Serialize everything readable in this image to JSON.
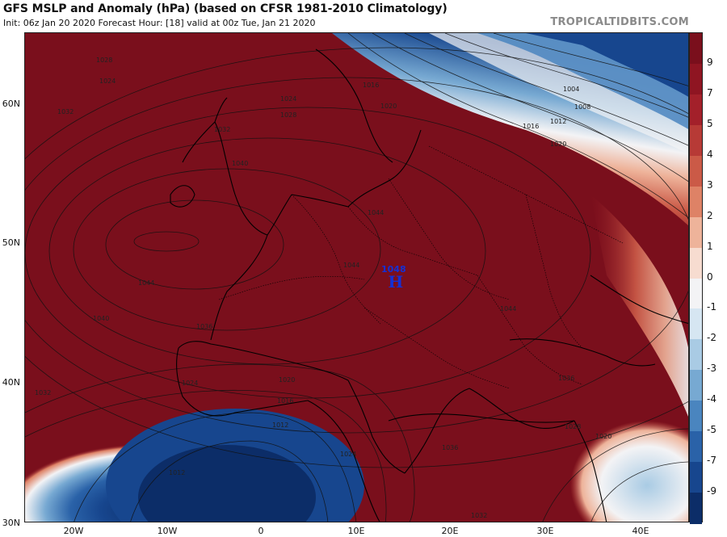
{
  "header": {
    "title": "GFS MSLP and Anomaly (hPa) (based on CFSR 1981-2010 Climatology)",
    "subtitle": "Init: 06z Jan 20 2020   Forecast Hour: [18]   valid at 00z Tue, Jan 21 2020",
    "credit": "TROPICALTIDBITS.COM"
  },
  "map": {
    "latitude_labels": [
      "60N",
      "50N",
      "40N",
      "30N"
    ],
    "longitude_labels": [
      "20W",
      "10W",
      "0",
      "10E",
      "20E",
      "30E",
      "40E"
    ],
    "pressure_center": {
      "type": "H",
      "value": "1048",
      "color": "#1430d6"
    },
    "isobar_labels": [
      "1016",
      "1020",
      "1024",
      "1028",
      "1032",
      "1036",
      "1040",
      "1044",
      "1048",
      "1012",
      "1008",
      "1004"
    ]
  },
  "colorbar": {
    "labels": [
      "9",
      "7",
      "5",
      "4",
      "3",
      "2",
      "1",
      "0",
      "-1",
      "-2",
      "-3",
      "-4",
      "-5",
      "-7",
      "-9"
    ],
    "colors": [
      "#7a0f1c",
      "#8f1522",
      "#a3202a",
      "#b73a36",
      "#cb5a47",
      "#de8266",
      "#eeb39a",
      "#f7dcd0",
      "#f3f3f5",
      "#d6e6f2",
      "#a9cbe4",
      "#77a9d2",
      "#4a85bf",
      "#2a62a8",
      "#17468e",
      "#0c2d68"
    ]
  }
}
